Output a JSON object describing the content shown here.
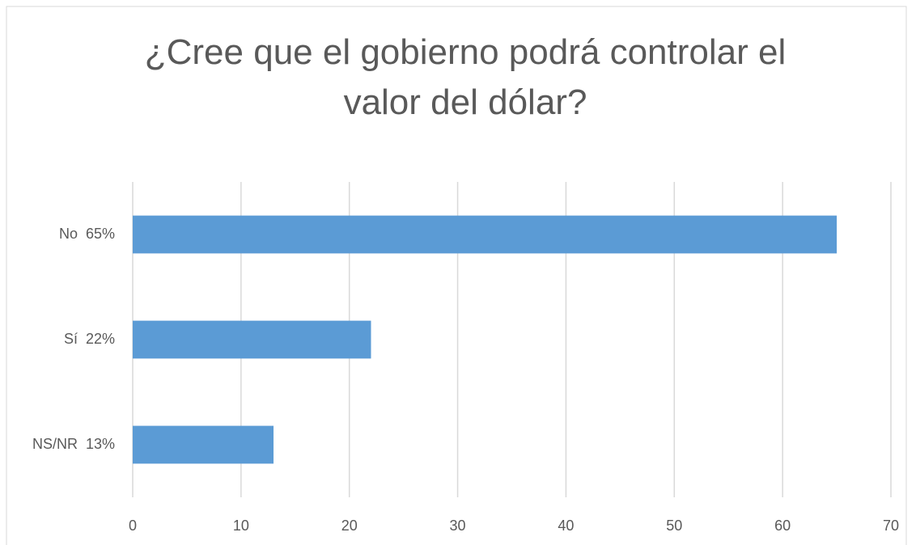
{
  "chart_data": {
    "type": "bar",
    "orientation": "horizontal",
    "title": "¿Cree que el gobierno podrá controlar el valor del dólar?",
    "categories": [
      "No  65%",
      "Sí  22%",
      "NS/NR  13%"
    ],
    "values": [
      65,
      22,
      13
    ],
    "color": "#5b9bd5",
    "xlim": [
      0,
      70
    ],
    "xticks": [
      0,
      10,
      20,
      30,
      40,
      50,
      60,
      70
    ],
    "grid": true
  }
}
